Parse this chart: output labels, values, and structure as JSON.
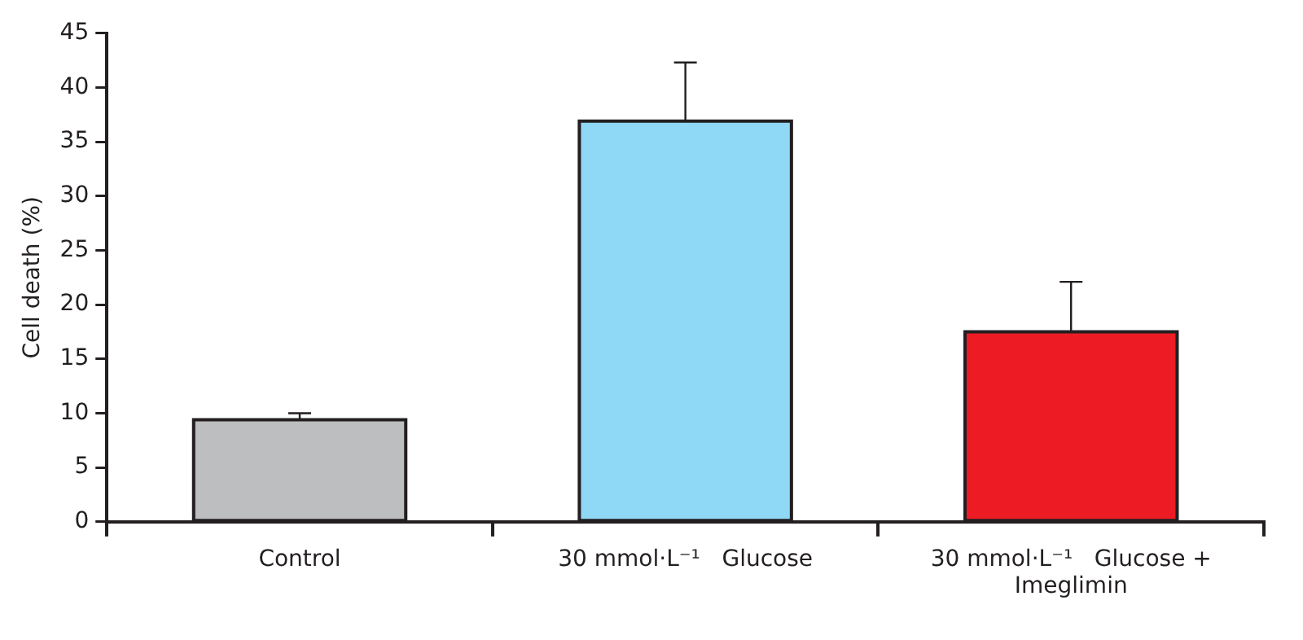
{
  "chart_data": {
    "type": "bar",
    "ylabel": "Cell death (%)",
    "categories": [
      "Control",
      "30 mmol·L⁻¹   Glucose",
      "30 mmol·L⁻¹   Glucose + Imeglimin"
    ],
    "values": [
      9.4,
      36.9,
      17.5
    ],
    "colors": [
      "#bcbec0",
      "#8fd8f6",
      "#ed1c24"
    ],
    "errors": [
      [
        9.4,
        10.0
      ],
      [
        36.9,
        42.3
      ],
      [
        17.5,
        22.1
      ]
    ],
    "ylim": [
      0,
      45
    ],
    "yticks": [
      0,
      5,
      10,
      15,
      20,
      25,
      30,
      35,
      40,
      45
    ]
  }
}
